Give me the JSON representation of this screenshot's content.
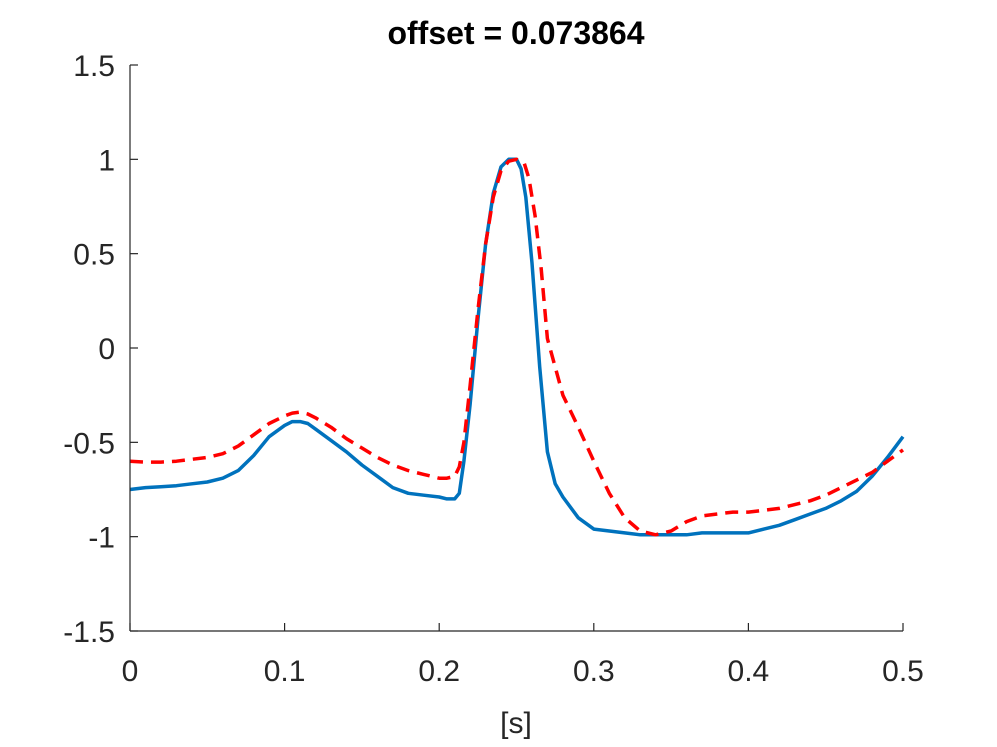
{
  "chart_data": {
    "type": "line",
    "title": "offset = 0.073864",
    "xlabel": "[s]",
    "ylabel": "",
    "xlim": [
      0,
      0.5
    ],
    "ylim": [
      -1.5,
      1.5
    ],
    "xticks": [
      0,
      0.1,
      0.2,
      0.3,
      0.4,
      0.5
    ],
    "xtick_labels": [
      "0",
      "0.1",
      "0.2",
      "0.3",
      "0.4",
      "0.5"
    ],
    "yticks": [
      -1.5,
      -1,
      -0.5,
      0,
      0.5,
      1,
      1.5
    ],
    "ytick_labels": [
      "-1.5",
      "-1",
      "-0.5",
      "0",
      "0.5",
      "1",
      "1.5"
    ],
    "grid": false,
    "series": [
      {
        "color": "#0072BD",
        "style": "solid",
        "x": [
          0,
          0.01,
          0.02,
          0.03,
          0.04,
          0.05,
          0.06,
          0.07,
          0.08,
          0.09,
          0.1,
          0.105,
          0.11,
          0.115,
          0.12,
          0.13,
          0.14,
          0.15,
          0.16,
          0.17,
          0.18,
          0.19,
          0.2,
          0.205,
          0.21,
          0.213,
          0.216,
          0.22,
          0.225,
          0.23,
          0.235,
          0.24,
          0.245,
          0.25,
          0.253,
          0.256,
          0.26,
          0.265,
          0.27,
          0.275,
          0.28,
          0.29,
          0.3,
          0.31,
          0.32,
          0.33,
          0.34,
          0.35,
          0.36,
          0.37,
          0.38,
          0.39,
          0.4,
          0.41,
          0.42,
          0.43,
          0.44,
          0.45,
          0.46,
          0.47,
          0.48,
          0.49,
          0.5
        ],
        "y": [
          -0.75,
          -0.74,
          -0.735,
          -0.73,
          -0.72,
          -0.71,
          -0.69,
          -0.65,
          -0.57,
          -0.47,
          -0.41,
          -0.39,
          -0.39,
          -0.4,
          -0.43,
          -0.49,
          -0.55,
          -0.62,
          -0.68,
          -0.74,
          -0.77,
          -0.78,
          -0.79,
          -0.8,
          -0.8,
          -0.77,
          -0.6,
          -0.3,
          0.15,
          0.55,
          0.82,
          0.96,
          1.0,
          1.0,
          0.95,
          0.8,
          0.45,
          -0.1,
          -0.55,
          -0.72,
          -0.79,
          -0.9,
          -0.96,
          -0.97,
          -0.98,
          -0.99,
          -0.99,
          -0.99,
          -0.99,
          -0.98,
          -0.98,
          -0.98,
          -0.98,
          -0.96,
          -0.94,
          -0.91,
          -0.88,
          -0.85,
          -0.81,
          -0.76,
          -0.68,
          -0.58,
          -0.47
        ]
      },
      {
        "color": "#FF0000",
        "style": "dashed",
        "x": [
          0,
          0.01,
          0.02,
          0.03,
          0.04,
          0.05,
          0.06,
          0.07,
          0.08,
          0.09,
          0.1,
          0.105,
          0.11,
          0.115,
          0.12,
          0.13,
          0.14,
          0.15,
          0.16,
          0.17,
          0.18,
          0.19,
          0.2,
          0.205,
          0.21,
          0.213,
          0.216,
          0.22,
          0.225,
          0.23,
          0.235,
          0.24,
          0.245,
          0.25,
          0.255,
          0.258,
          0.262,
          0.266,
          0.27,
          0.28,
          0.29,
          0.3,
          0.31,
          0.32,
          0.33,
          0.34,
          0.35,
          0.36,
          0.37,
          0.38,
          0.39,
          0.4,
          0.41,
          0.42,
          0.43,
          0.44,
          0.45,
          0.46,
          0.47,
          0.48,
          0.49,
          0.5
        ],
        "y": [
          -0.6,
          -0.605,
          -0.605,
          -0.6,
          -0.59,
          -0.58,
          -0.56,
          -0.52,
          -0.46,
          -0.4,
          -0.36,
          -0.345,
          -0.34,
          -0.35,
          -0.37,
          -0.42,
          -0.48,
          -0.53,
          -0.58,
          -0.62,
          -0.65,
          -0.67,
          -0.69,
          -0.69,
          -0.68,
          -0.63,
          -0.5,
          -0.2,
          0.2,
          0.55,
          0.8,
          0.94,
          0.99,
          1.0,
          0.98,
          0.9,
          0.7,
          0.42,
          0.05,
          -0.25,
          -0.42,
          -0.6,
          -0.77,
          -0.9,
          -0.97,
          -0.99,
          -0.97,
          -0.92,
          -0.89,
          -0.88,
          -0.87,
          -0.87,
          -0.86,
          -0.85,
          -0.83,
          -0.81,
          -0.78,
          -0.74,
          -0.7,
          -0.66,
          -0.6,
          -0.54
        ]
      }
    ]
  }
}
